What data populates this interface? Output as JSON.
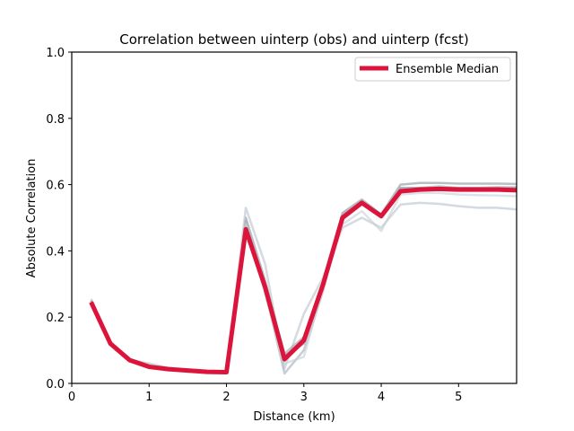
{
  "chart_data": {
    "type": "line",
    "title": "Correlation between uinterp (obs) and uinterp (fcst)",
    "xlabel": "Distance (km)",
    "ylabel": "Absolute Correlation",
    "xlim": [
      0,
      5.75
    ],
    "ylim": [
      0,
      1.0
    ],
    "xticks": [
      "0",
      "1",
      "2",
      "3",
      "4",
      "5"
    ],
    "yticks": [
      "0.0",
      "0.2",
      "0.4",
      "0.6",
      "0.8",
      "1.0"
    ],
    "legend_position": "upper-right",
    "grid": false,
    "x": [
      0.25,
      0.5,
      0.75,
      1.0,
      1.25,
      1.5,
      1.75,
      2.0,
      2.25,
      2.5,
      2.75,
      3.0,
      3.25,
      3.5,
      3.75,
      4.0,
      4.25,
      4.5,
      4.75,
      5.0,
      5.25,
      5.5,
      5.75
    ],
    "series": [
      {
        "name": "Ensemble Median",
        "color": "#dc143c",
        "values": [
          0.245,
          0.12,
          0.07,
          0.05,
          0.043,
          0.039,
          0.035,
          0.034,
          0.465,
          0.29,
          0.073,
          0.13,
          0.3,
          0.5,
          0.545,
          0.505,
          0.58,
          0.585,
          0.587,
          0.585,
          0.585,
          0.585,
          0.583
        ]
      }
    ],
    "members": [
      {
        "color": "#8a929c",
        "values": [
          0.25,
          0.125,
          0.073,
          0.055,
          0.045,
          0.04,
          0.036,
          0.035,
          0.5,
          0.31,
          0.085,
          0.12,
          0.31,
          0.515,
          0.555,
          0.51,
          0.6,
          0.605,
          0.605,
          0.603,
          0.603,
          0.603,
          0.602
        ]
      },
      {
        "color": "#b8c2cb",
        "values": [
          0.255,
          0.122,
          0.072,
          0.06,
          0.047,
          0.041,
          0.037,
          0.036,
          0.53,
          0.36,
          0.045,
          0.21,
          0.32,
          0.47,
          0.5,
          0.47,
          0.54,
          0.545,
          0.542,
          0.535,
          0.53,
          0.53,
          0.525
        ]
      },
      {
        "color": "#a3acb5",
        "values": [
          0.248,
          0.118,
          0.069,
          0.052,
          0.044,
          0.038,
          0.035,
          0.034,
          0.49,
          0.28,
          0.03,
          0.1,
          0.28,
          0.51,
          0.55,
          0.5,
          0.59,
          0.59,
          0.59,
          0.59,
          0.59,
          0.59,
          0.59
        ]
      },
      {
        "color": "#c6ced6",
        "values": [
          0.24,
          0.12,
          0.071,
          0.058,
          0.046,
          0.04,
          0.036,
          0.035,
          0.48,
          0.27,
          0.06,
          0.08,
          0.29,
          0.48,
          0.52,
          0.46,
          0.57,
          0.575,
          0.575,
          0.57,
          0.568,
          0.567,
          0.565
        ]
      },
      {
        "color": "#9aa3ad",
        "values": [
          0.25,
          0.12,
          0.07,
          0.05,
          0.043,
          0.039,
          0.035,
          0.034,
          0.47,
          0.3,
          0.09,
          0.14,
          0.3,
          0.505,
          0.55,
          0.51,
          0.59,
          0.59,
          0.595,
          0.59,
          0.59,
          0.592,
          0.592
        ]
      }
    ]
  }
}
